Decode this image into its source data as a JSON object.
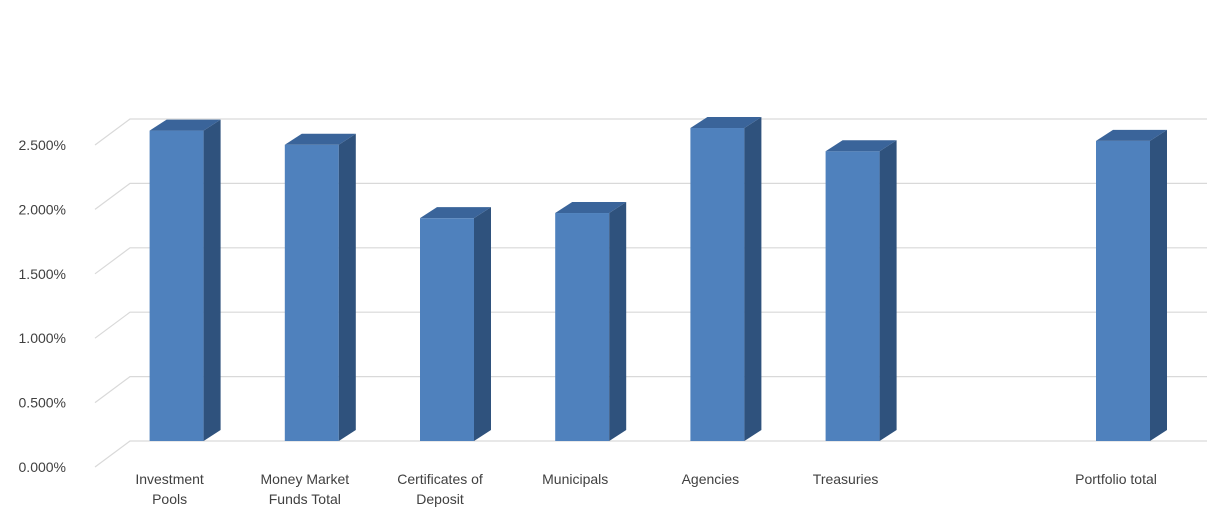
{
  "chart_data": {
    "type": "bar",
    "style": "3d-column",
    "title": "",
    "xlabel": "",
    "ylabel": "",
    "categories": [
      "Investment Pools",
      "Money Market Funds Total",
      "Certificates of Deposit",
      "Municipals",
      "Agencies",
      "Treasuries",
      "",
      "Portfolio total"
    ],
    "category_lines": [
      [
        "Investment",
        "Pools"
      ],
      [
        "Money Market",
        "Funds Total"
      ],
      [
        "Certificates of",
        "Deposit"
      ],
      [
        "Municipals"
      ],
      [
        "Agencies"
      ],
      [
        "Treasuries"
      ],
      [],
      [
        "Portfolio total"
      ]
    ],
    "values": [
      2.41,
      2.3,
      1.73,
      1.77,
      2.43,
      2.25,
      null,
      2.33
    ],
    "ylim": [
      0,
      2.5
    ],
    "yticks": [
      0,
      0.5,
      1.0,
      1.5,
      2.0,
      2.5
    ],
    "ytick_labels": [
      "0.000%",
      "0.500%",
      "1.000%",
      "1.500%",
      "2.000%",
      "2.500%"
    ],
    "grid": true,
    "legend": "none",
    "colors": {
      "front": "#4f81bd",
      "side": "#2f527d",
      "top": "#3a649a",
      "grid": "#d9d9d9",
      "text": "#404040"
    }
  }
}
